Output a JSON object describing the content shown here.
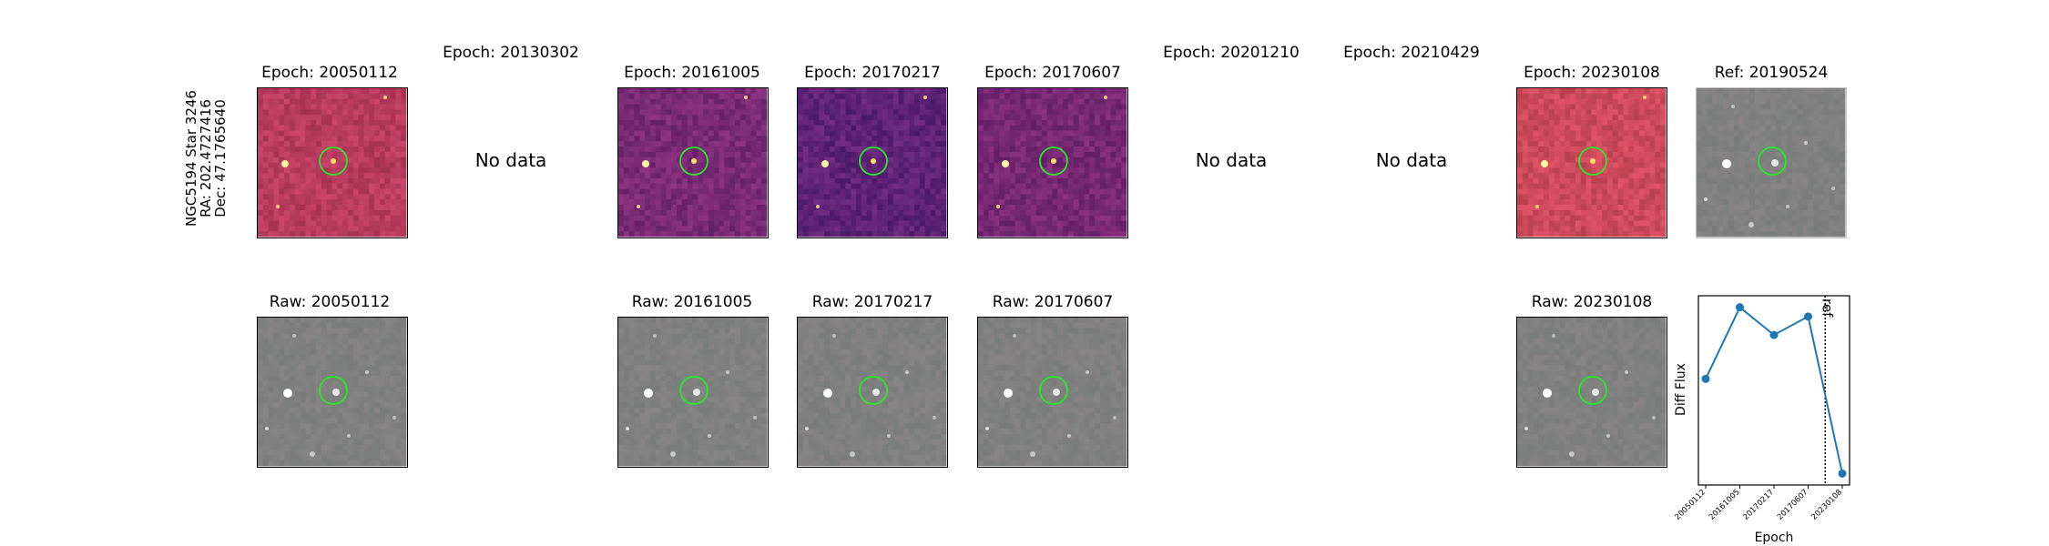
{
  "target_label": [
    "NGC5194 Star 3246",
    "RA: 202.4727416",
    "Dec: 47.1765640"
  ],
  "no_data_text": "No data",
  "epochs": [
    {
      "title": "Epoch: 20050112",
      "has_data": true,
      "raw_title": "Raw: 20050112",
      "diff_color": "#b83b60"
    },
    {
      "title": "Epoch: 20130302",
      "has_data": false
    },
    {
      "title": "Epoch: 20161005",
      "has_data": true,
      "raw_title": "Raw: 20161005",
      "diff_color": "#7a2a76"
    },
    {
      "title": "Epoch: 20170217",
      "has_data": true,
      "raw_title": "Raw: 20170217",
      "diff_color": "#5f2377"
    },
    {
      "title": "Epoch: 20170607",
      "has_data": true,
      "raw_title": "Raw: 20170607",
      "diff_color": "#772874"
    },
    {
      "title": "Epoch: 20201210",
      "has_data": false
    },
    {
      "title": "Epoch: 20210429",
      "has_data": false
    },
    {
      "title": "Epoch: 20230108",
      "has_data": true,
      "raw_title": "Raw: 20230108",
      "diff_color": "#cc4a5c"
    }
  ],
  "ref_title": "Ref: 20190524",
  "marker_color": "#22ee22",
  "chart_data": {
    "type": "line",
    "xlabel": "Epoch",
    "ylabel": "Diff Flux",
    "categories": [
      "20050112",
      "20161005",
      "20170217",
      "20170607",
      "20230108"
    ],
    "values": [
      0.56,
      0.87,
      0.75,
      0.83,
      0.15
    ],
    "ylim": [
      0.1,
      0.92
    ],
    "ref_line": {
      "label": "ref",
      "position_between": [
        3,
        4
      ],
      "fraction": 0.5
    },
    "line_color": "#1f77b4"
  }
}
